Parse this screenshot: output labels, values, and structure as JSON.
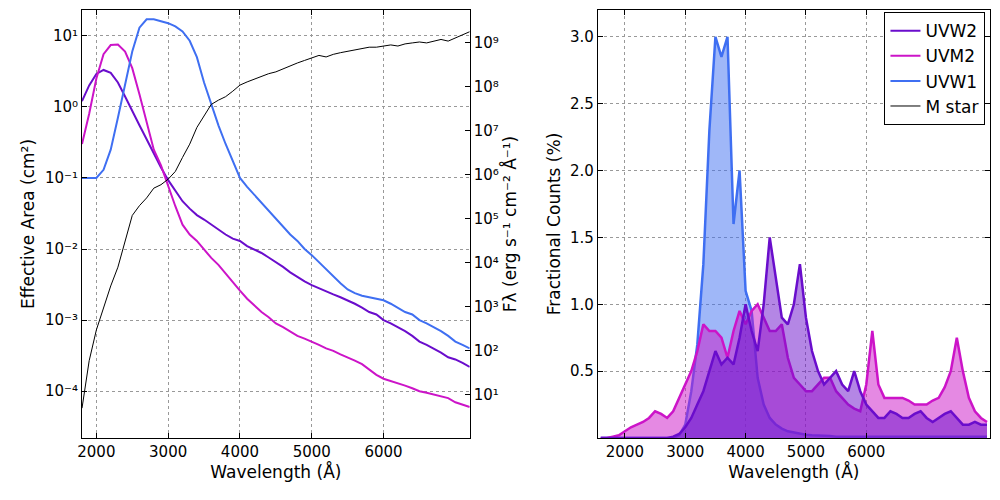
{
  "chart_data": [
    {
      "type": "line",
      "log": "y",
      "grid": true,
      "legend": "upper right",
      "x_label": "Wavelength (Å)",
      "y_label": "Effective Area (cm²)",
      "y2_label": "Fλ (erg s⁻¹ cm⁻² Å⁻¹)",
      "xlim": [
        1800,
        7200
      ],
      "xticks": [
        2000,
        3000,
        4000,
        5000,
        6000
      ],
      "ylim": [
        2.2e-05,
        23
      ],
      "yticks": [
        {
          "value": 0.0001,
          "label": "10⁻⁴"
        },
        {
          "value": 0.001,
          "label": "10⁻³"
        },
        {
          "value": 0.01,
          "label": "10⁻²"
        },
        {
          "value": 0.1,
          "label": "10⁻¹"
        },
        {
          "value": 1,
          "label": "10⁰"
        },
        {
          "value": 10,
          "label": "10¹"
        }
      ],
      "y2lim": [
        1.05,
        5600000000.0
      ],
      "y2ticks": [
        {
          "value": 10,
          "label": "10¹"
        },
        {
          "value": 100,
          "label": "10²"
        },
        {
          "value": 1000,
          "label": "10³"
        },
        {
          "value": 10000,
          "label": "10⁴"
        },
        {
          "value": 100000,
          "label": "10⁵"
        },
        {
          "value": 1000000,
          "label": "10⁶"
        },
        {
          "value": 10000000,
          "label": "10⁷"
        },
        {
          "value": 100000000,
          "label": "10⁸"
        },
        {
          "value": 1000000000,
          "label": "10⁹"
        }
      ],
      "x": [
        1800,
        1900,
        2000,
        2100,
        2200,
        2300,
        2400,
        2500,
        2600,
        2700,
        2800,
        2900,
        3000,
        3100,
        3200,
        3300,
        3400,
        3500,
        3600,
        3700,
        3800,
        3900,
        4000,
        4100,
        4200,
        4300,
        4400,
        4500,
        4600,
        4700,
        4800,
        4900,
        5000,
        5100,
        5200,
        5300,
        5400,
        5500,
        5600,
        5700,
        5800,
        5900,
        6000,
        6100,
        6200,
        6300,
        6400,
        6500,
        6600,
        6700,
        6800,
        6900,
        7000,
        7100,
        7200
      ],
      "series": [
        {
          "name": "UVW2",
          "color": "#6a0dcc",
          "values": [
            1.2,
            2.0,
            2.9,
            3.3,
            3.0,
            2.2,
            1.4,
            0.9,
            0.55,
            0.35,
            0.22,
            0.14,
            0.093,
            0.065,
            0.047,
            0.037,
            0.03,
            0.026,
            0.022,
            0.019,
            0.016,
            0.014,
            0.013,
            0.011,
            0.0098,
            0.0088,
            0.0076,
            0.0066,
            0.0056,
            0.0047,
            0.004,
            0.0035,
            0.0031,
            0.0028,
            0.0025,
            0.0023,
            0.0021,
            0.0019,
            0.0017,
            0.0015,
            0.0013,
            0.0012,
            0.001,
            0.0009,
            0.0008,
            0.0007,
            0.0006,
            0.0005,
            0.00045,
            0.0004,
            0.00035,
            0.0003,
            0.00028,
            0.00025,
            0.00022
          ]
        },
        {
          "name": "UVM2",
          "color": "#cc14c8",
          "values": [
            0.3,
            0.8,
            2.5,
            5.5,
            7.4,
            7.5,
            6.0,
            3.5,
            1.5,
            0.6,
            0.25,
            0.15,
            0.075,
            0.04,
            0.022,
            0.016,
            0.013,
            0.01,
            0.0075,
            0.006,
            0.0045,
            0.0035,
            0.0026,
            0.002,
            0.0016,
            0.0013,
            0.0011,
            0.0009,
            0.0008,
            0.0007,
            0.0006,
            0.00055,
            0.0005,
            0.00045,
            0.0004,
            0.00037,
            0.00033,
            0.0003,
            0.00027,
            0.00024,
            0.0002,
            0.00017,
            0.00015,
            0.00014,
            0.00013,
            0.00012,
            0.00011,
            0.0001,
            9.5e-05,
            9e-05,
            8.5e-05,
            8e-05,
            7e-05,
            6.5e-05,
            6e-05
          ]
        },
        {
          "name": "UVW1",
          "color": "#3f6ff2",
          "values": [
            0.1,
            0.1,
            0.1,
            0.13,
            0.25,
            0.7,
            2.0,
            6.0,
            13,
            17,
            17,
            16,
            15,
            13.5,
            11.5,
            8.5,
            5,
            2.2,
            1.1,
            0.55,
            0.3,
            0.17,
            0.1,
            0.075,
            0.058,
            0.045,
            0.035,
            0.027,
            0.021,
            0.016,
            0.013,
            0.01,
            0.0082,
            0.0065,
            0.0052,
            0.0042,
            0.0033,
            0.0027,
            0.0024,
            0.0022,
            0.0021,
            0.002,
            0.0019,
            0.0017,
            0.0015,
            0.0013,
            0.0012,
            0.001,
            0.0009,
            0.0008,
            0.0007,
            0.0006,
            0.0005,
            0.00045,
            0.0004
          ]
        },
        {
          "name": "M star",
          "color": "#000000",
          "axis": "y2",
          "values": [
            5,
            60,
            300,
            1000,
            3000,
            8000,
            30000,
            120000,
            200000,
            300000,
            500000,
            600000,
            800000,
            1200000,
            2500000,
            5000000,
            12000000,
            22000000,
            40000000,
            50000000,
            60000000,
            80000000,
            110000000,
            130000000,
            150000000,
            170000000,
            200000000,
            220000000,
            260000000,
            300000000,
            350000000,
            400000000,
            450000000,
            520000000,
            480000000,
            550000000,
            600000000,
            650000000,
            700000000,
            750000000,
            800000000,
            800000000,
            850000000,
            900000000,
            850000000,
            950000000,
            1000000000,
            1050000000,
            1000000000,
            1100000000,
            1200000000,
            1100000000,
            1300000000,
            1500000000,
            1800000000
          ]
        }
      ]
    },
    {
      "type": "area",
      "grid": true,
      "x_label": "Wavelength (Å)",
      "y_label": "Fractional Counts (%)",
      "xlim": [
        1550,
        8050
      ],
      "xticks": [
        2000,
        3000,
        4000,
        5000,
        6000
      ],
      "ylim": [
        0,
        3.2
      ],
      "yticks": [
        0.5,
        {
          "value": 1,
          "label": "1.0"
        },
        1.5,
        {
          "value": 2,
          "label": "2.0"
        },
        2.5,
        {
          "value": 3,
          "label": "3.0"
        }
      ],
      "x": [
        1600,
        1700,
        1800,
        1900,
        2000,
        2100,
        2200,
        2300,
        2400,
        2500,
        2600,
        2700,
        2800,
        2900,
        3000,
        3100,
        3200,
        3300,
        3400,
        3500,
        3600,
        3700,
        3800,
        3900,
        4000,
        4100,
        4200,
        4300,
        4400,
        4500,
        4600,
        4700,
        4800,
        4900,
        5000,
        5100,
        5200,
        5300,
        5400,
        5500,
        5600,
        5700,
        5800,
        5900,
        6000,
        6100,
        6200,
        6300,
        6400,
        6500,
        6600,
        6700,
        6800,
        6900,
        7000,
        7100,
        7200,
        7300,
        7400,
        7500,
        7600,
        7700,
        7800,
        7900,
        8000
      ],
      "series": [
        {
          "name": "UVW1",
          "color": "#3f6ff2",
          "values": [
            0,
            0,
            0,
            0,
            0,
            0,
            0,
            0,
            0,
            0,
            0,
            0,
            0,
            0.02,
            0.1,
            0.35,
            0.7,
            1.3,
            2.3,
            3.0,
            2.85,
            3.0,
            1.6,
            2.0,
            1.1,
            0.95,
            0.45,
            0.25,
            0.15,
            0.1,
            0.07,
            0.05,
            0.04,
            0.03,
            0.025,
            0.02,
            0.02,
            0.015,
            0.015,
            0.01,
            0.01,
            0.01,
            0.01,
            0.01,
            0.01,
            0.01,
            0.01,
            0.01,
            0.01,
            0.01,
            0.01,
            0.01,
            0.01,
            0.01,
            0.01,
            0.01,
            0.01,
            0.01,
            0.01,
            0.01,
            0.01,
            0.01,
            0.01,
            0.01,
            0.01
          ]
        },
        {
          "name": "UVM2",
          "color": "#cc14c8",
          "values": [
            0,
            0,
            0.01,
            0.02,
            0.05,
            0.08,
            0.1,
            0.12,
            0.15,
            0.2,
            0.18,
            0.15,
            0.2,
            0.3,
            0.4,
            0.5,
            0.65,
            0.85,
            0.8,
            0.8,
            0.75,
            0.6,
            0.8,
            0.95,
            0.85,
            0.95,
            1.0,
            0.9,
            0.8,
            0.8,
            0.85,
            0.6,
            0.45,
            0.4,
            0.35,
            0.35,
            0.4,
            0.45,
            0.45,
            0.35,
            0.3,
            0.25,
            0.22,
            0.2,
            0.4,
            0.8,
            0.4,
            0.3,
            0.3,
            0.3,
            0.3,
            0.28,
            0.25,
            0.25,
            0.25,
            0.28,
            0.3,
            0.38,
            0.5,
            0.75,
            0.5,
            0.3,
            0.2,
            0.15,
            0.12
          ]
        },
        {
          "name": "UVW2",
          "color": "#6a0dcc",
          "values": [
            0,
            0,
            0,
            0,
            0,
            0,
            0,
            0,
            0,
            0,
            0,
            0,
            0.01,
            0.03,
            0.08,
            0.15,
            0.25,
            0.35,
            0.5,
            0.65,
            0.55,
            0.6,
            0.55,
            0.75,
            1.0,
            0.8,
            0.65,
            1.0,
            1.5,
            1.2,
            0.9,
            0.85,
            1.0,
            1.3,
            0.9,
            0.65,
            0.5,
            0.4,
            0.45,
            0.5,
            0.4,
            0.35,
            0.5,
            0.35,
            0.25,
            0.2,
            0.15,
            0.15,
            0.2,
            0.18,
            0.15,
            0.15,
            0.18,
            0.2,
            0.15,
            0.12,
            0.15,
            0.18,
            0.2,
            0.15,
            0.1,
            0.1,
            0.12,
            0.1,
            0.1
          ]
        }
      ]
    }
  ]
}
